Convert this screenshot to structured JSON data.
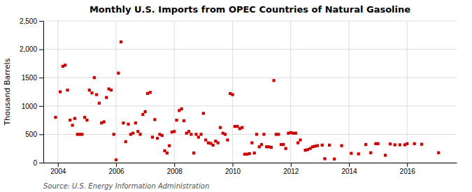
{
  "chart_data": {
    "type": "scatter",
    "title": "Monthly U.S. Imports from OPEC Countries of Natural Gasoline",
    "y_label": "Thousand Barrels",
    "source": "Source: U.S. Energy Information Administration",
    "color": "#cc0000",
    "marker": "square",
    "grid": true,
    "xlim": [
      2003.5,
      2017.7
    ],
    "xticks": [
      2004,
      2006,
      2008,
      2010,
      2012,
      2014,
      2016
    ],
    "ylim": [
      0,
      2500
    ],
    "yticks": [
      0,
      500,
      1000,
      1500,
      {
        "value": 2000,
        "label": "2,000"
      },
      {
        "value": 2500,
        "label": "2,500"
      }
    ],
    "x": [
      2003.92,
      2004.08,
      2004.17,
      2004.25,
      2004.33,
      2004.42,
      2004.5,
      2004.58,
      2004.67,
      2004.75,
      2004.83,
      2004.92,
      2005.0,
      2005.08,
      2005.17,
      2005.25,
      2005.33,
      2005.42,
      2005.5,
      2005.58,
      2005.67,
      2005.75,
      2005.83,
      2005.92,
      2006.0,
      2006.08,
      2006.17,
      2006.25,
      2006.33,
      2006.42,
      2006.5,
      2006.58,
      2006.67,
      2006.75,
      2006.83,
      2006.92,
      2007.0,
      2007.08,
      2007.17,
      2007.25,
      2007.33,
      2007.42,
      2007.5,
      2007.58,
      2007.67,
      2007.75,
      2007.83,
      2007.92,
      2008.0,
      2008.08,
      2008.17,
      2008.25,
      2008.33,
      2008.42,
      2008.5,
      2008.58,
      2008.67,
      2008.75,
      2008.83,
      2008.92,
      2009.0,
      2009.08,
      2009.17,
      2009.25,
      2009.33,
      2009.42,
      2009.5,
      2009.58,
      2009.67,
      2009.75,
      2009.83,
      2009.92,
      2010.0,
      2010.08,
      2010.17,
      2010.25,
      2010.33,
      2010.42,
      2010.5,
      2010.58,
      2010.67,
      2010.75,
      2010.83,
      2010.92,
      2011.0,
      2011.08,
      2011.17,
      2011.25,
      2011.33,
      2011.42,
      2011.5,
      2011.58,
      2011.67,
      2011.75,
      2011.83,
      2011.92,
      2012.0,
      2012.08,
      2012.17,
      2012.25,
      2012.33,
      2012.5,
      2012.58,
      2012.67,
      2012.75,
      2012.83,
      2012.92,
      2013.08,
      2013.17,
      2013.33,
      2013.5,
      2013.75,
      2014.08,
      2014.33,
      2014.58,
      2014.75,
      2014.92,
      2015.0,
      2015.25,
      2015.42,
      2015.58,
      2015.75,
      2015.92,
      2016.0,
      2016.25,
      2016.5,
      2017.08
    ],
    "values": [
      800,
      1250,
      1700,
      1720,
      1280,
      750,
      660,
      780,
      500,
      500,
      500,
      800,
      750,
      1280,
      1230,
      1500,
      1200,
      1050,
      700,
      720,
      1150,
      1300,
      1280,
      500,
      50,
      1580,
      2130,
      700,
      370,
      680,
      500,
      520,
      700,
      550,
      500,
      850,
      900,
      1220,
      1240,
      450,
      760,
      430,
      500,
      480,
      210,
      170,
      300,
      540,
      550,
      750,
      920,
      950,
      740,
      520,
      550,
      500,
      170,
      500,
      450,
      500,
      870,
      400,
      350,
      340,
      310,
      380,
      350,
      620,
      520,
      500,
      400,
      1220,
      1200,
      640,
      640,
      600,
      620,
      150,
      150,
      160,
      350,
      170,
      500,
      280,
      320,
      500,
      280,
      280,
      270,
      1450,
      500,
      500,
      320,
      320,
      250,
      520,
      530,
      520,
      520,
      350,
      400,
      220,
      230,
      250,
      280,
      290,
      300,
      310,
      70,
      310,
      65,
      300,
      165,
      155,
      320,
      175,
      335,
      335,
      130,
      330,
      315,
      315,
      315,
      335,
      335,
      325,
      175
    ]
  }
}
